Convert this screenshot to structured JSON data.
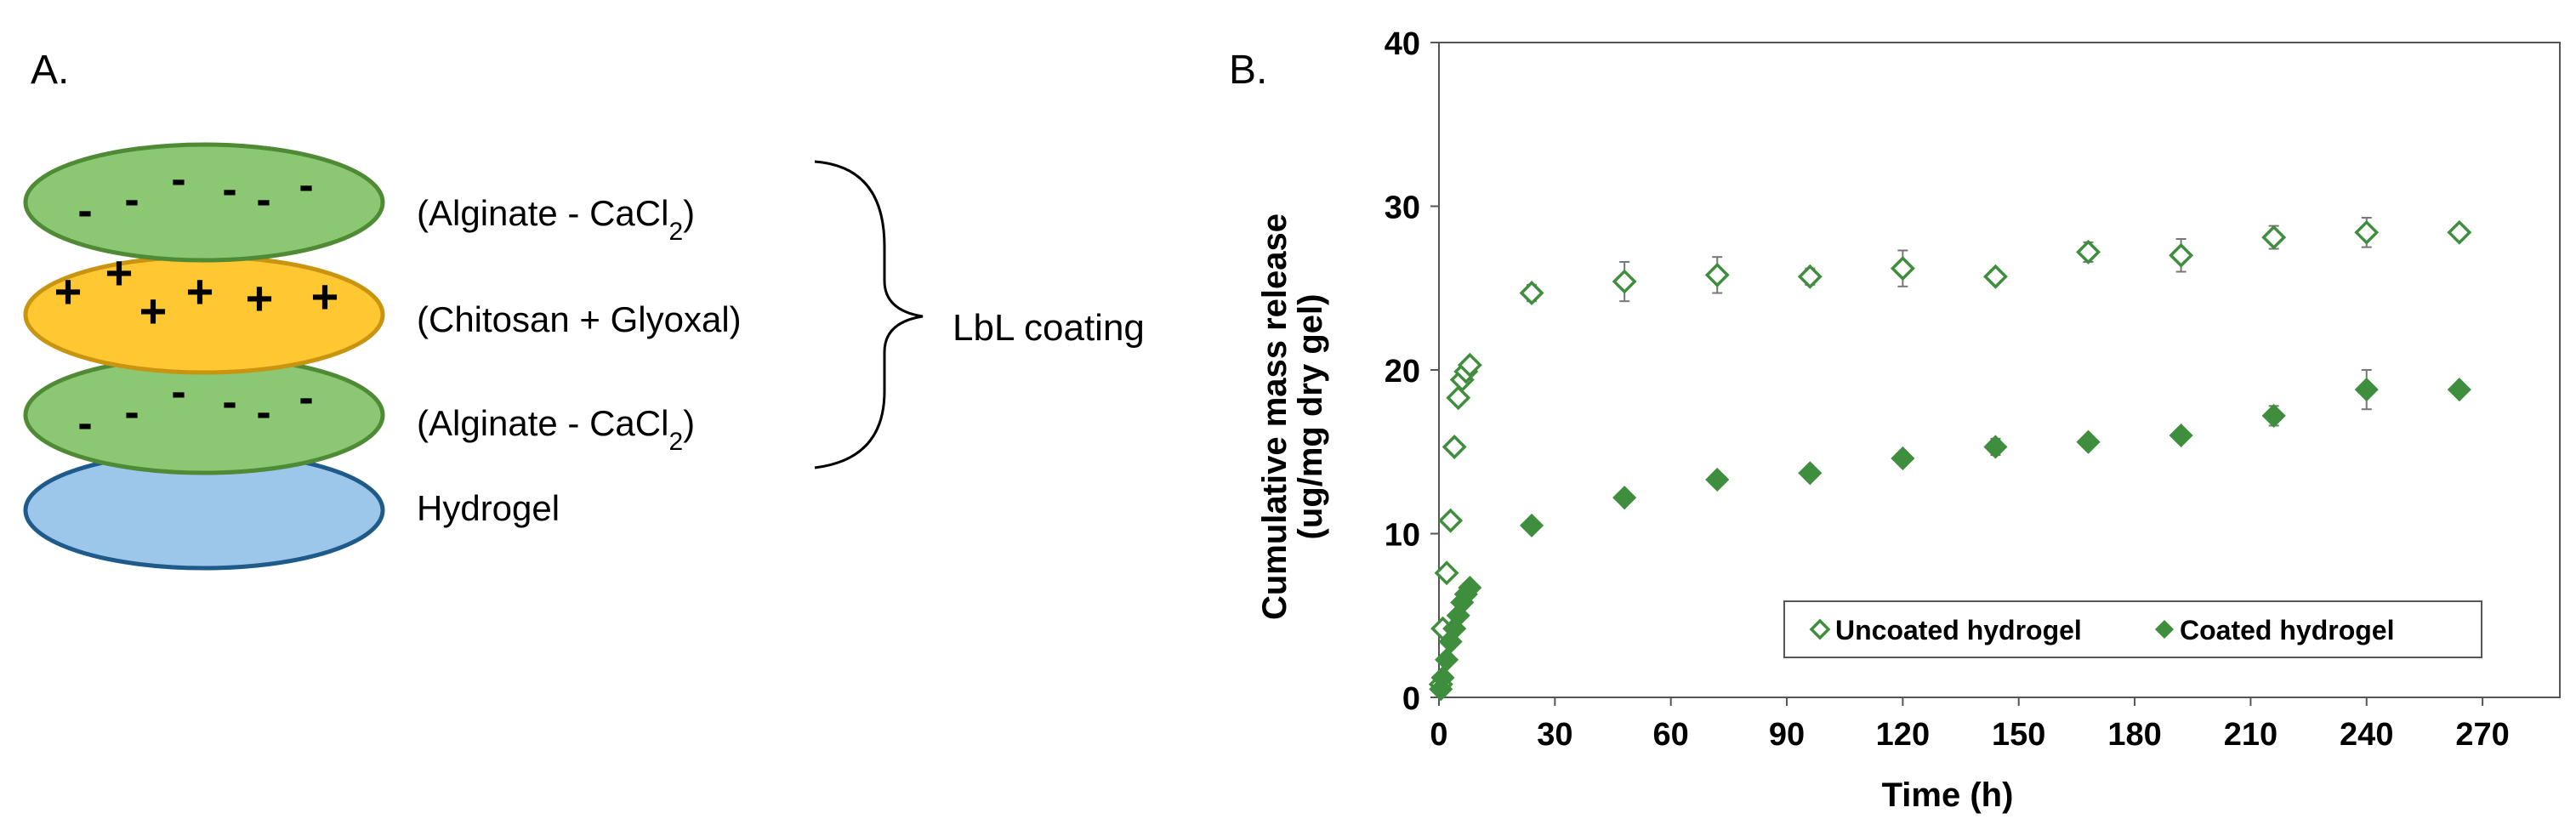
{
  "panel_a": {
    "label": "A.",
    "layers": [
      {
        "name": "Alginate - CaCl2",
        "text_prefix": "(Alginate - CaCl",
        "text_sub": "2",
        "text_suffix": ")",
        "charge": "-",
        "color": "#8cc873",
        "stroke": "#4f8a34"
      },
      {
        "name": "Chitosan + Glyoxal",
        "text_prefix": "(Chitosan + Glyoxal)",
        "text_sub": "",
        "text_suffix": "",
        "charge": "+",
        "color": "#ffc731",
        "stroke": "#c99511"
      },
      {
        "name": "Alginate - CaCl2",
        "text_prefix": "(Alginate - CaCl",
        "text_sub": "2",
        "text_suffix": ")",
        "charge": "-",
        "color": "#8cc873",
        "stroke": "#4f8a34"
      },
      {
        "name": "Hydrogel",
        "text_prefix": "Hydrogel",
        "text_sub": "",
        "text_suffix": "",
        "charge": "",
        "color": "#9dc7ea",
        "stroke": "#1f5b8a"
      }
    ],
    "bracket_label": "LbL coating"
  },
  "panel_b_label": "B.",
  "chart_data": {
    "type": "scatter",
    "title": "",
    "xlabel": "Time (h)",
    "ylabel_line1": "Cumulative mass release",
    "ylabel_line2": "(ug/mg dry gel)",
    "xlim": [
      0,
      290
    ],
    "ylim": [
      0,
      40
    ],
    "xticks": [
      0,
      30,
      60,
      90,
      120,
      150,
      180,
      210,
      240,
      270
    ],
    "yticks": [
      0,
      10,
      20,
      30,
      40
    ],
    "grid": false,
    "legend_position": "bottom-right",
    "series_color": "#3e8e3e",
    "series": [
      {
        "name": "Uncoated hydrogel",
        "marker": "diamond-open",
        "points": [
          {
            "x": 0.5,
            "y": 0.8,
            "err": 0
          },
          {
            "x": 1,
            "y": 4.2,
            "err": 0
          },
          {
            "x": 2,
            "y": 7.6,
            "err": 0.3
          },
          {
            "x": 3,
            "y": 10.8,
            "err": 0.3
          },
          {
            "x": 4,
            "y": 15.3,
            "err": 0.4
          },
          {
            "x": 5,
            "y": 18.3,
            "err": 0.4
          },
          {
            "x": 6,
            "y": 19.4,
            "err": 0.4
          },
          {
            "x": 7,
            "y": 19.9,
            "err": 0.4
          },
          {
            "x": 8,
            "y": 20.3,
            "err": 0.4
          },
          {
            "x": 24,
            "y": 24.7,
            "err": 0.5
          },
          {
            "x": 48,
            "y": 25.4,
            "err": 1.2
          },
          {
            "x": 72,
            "y": 25.8,
            "err": 1.1
          },
          {
            "x": 96,
            "y": 25.7,
            "err": 0.5
          },
          {
            "x": 120,
            "y": 26.2,
            "err": 1.1
          },
          {
            "x": 144,
            "y": 25.7,
            "err": 0.4
          },
          {
            "x": 168,
            "y": 27.2,
            "err": 0.6
          },
          {
            "x": 192,
            "y": 27.0,
            "err": 1.0
          },
          {
            "x": 216,
            "y": 28.1,
            "err": 0.7
          },
          {
            "x": 240,
            "y": 28.4,
            "err": 0.9
          },
          {
            "x": 264,
            "y": 28.4,
            "err": 0.4
          }
        ]
      },
      {
        "name": "Coated hydrogel",
        "marker": "diamond-filled",
        "points": [
          {
            "x": 0.5,
            "y": 0.5,
            "err": 0
          },
          {
            "x": 1,
            "y": 1.2,
            "err": 0
          },
          {
            "x": 2,
            "y": 2.3,
            "err": 0
          },
          {
            "x": 3,
            "y": 3.4,
            "err": 0
          },
          {
            "x": 4,
            "y": 4.2,
            "err": 0
          },
          {
            "x": 5,
            "y": 5.0,
            "err": 0
          },
          {
            "x": 6,
            "y": 5.8,
            "err": 0
          },
          {
            "x": 7,
            "y": 6.3,
            "err": 0
          },
          {
            "x": 8,
            "y": 6.7,
            "err": 0
          },
          {
            "x": 24,
            "y": 10.5,
            "err": 0
          },
          {
            "x": 48,
            "y": 12.2,
            "err": 0
          },
          {
            "x": 72,
            "y": 13.3,
            "err": 0
          },
          {
            "x": 96,
            "y": 13.7,
            "err": 0
          },
          {
            "x": 120,
            "y": 14.6,
            "err": 0
          },
          {
            "x": 144,
            "y": 15.3,
            "err": 0.5
          },
          {
            "x": 168,
            "y": 15.6,
            "err": 0
          },
          {
            "x": 192,
            "y": 16.0,
            "err": 0
          },
          {
            "x": 216,
            "y": 17.2,
            "err": 0.6
          },
          {
            "x": 240,
            "y": 18.8,
            "err": 1.2
          },
          {
            "x": 264,
            "y": 18.8,
            "err": 0.3
          }
        ]
      }
    ]
  }
}
